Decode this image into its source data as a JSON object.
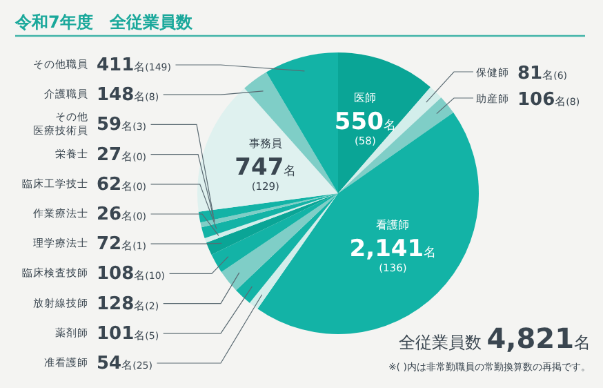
{
  "chart_data": {
    "type": "pie",
    "title": "令和7年度　全従業員数",
    "categories": [
      "医師",
      "保健師",
      "助産師",
      "看護師",
      "准看護師",
      "薬剤師",
      "放射線技師",
      "臨床検査技師",
      "理学療法士",
      "作業療法士",
      "臨床工学技士",
      "栄養士",
      "その他医療技術員",
      "事務員",
      "介護職員",
      "その他職員"
    ],
    "values": [
      550,
      81,
      106,
      2141,
      54,
      101,
      128,
      108,
      72,
      26,
      62,
      27,
      59,
      747,
      148,
      411
    ],
    "value_labels": [
      "550名(58)",
      "81名(6)",
      "106名(8)",
      "2,141名(136)",
      "54名(25)",
      "101名(5)",
      "128名(2)",
      "108名(10)",
      "72名(1)",
      "26名(0)",
      "62名(0)",
      "27名(0)",
      "59名(3)",
      "747名(129)",
      "148名(8)",
      "411名(149)"
    ],
    "colors": [
      "#0aa596",
      "#d3eeeb",
      "#7fcec7",
      "#13b3a6",
      "#d3eeeb",
      "#13b3a6",
      "#7fcec7",
      "#13b3a6",
      "#0aa596",
      "#d3eeeb",
      "#13b3a6",
      "#7fcec7",
      "#13b3a6",
      "#dff1ef",
      "#7fcec7",
      "#13b3a6"
    ],
    "annotations": [
      "全従業員数 4,821名",
      "※( )内は非常勤職員の常勤換算数の再掲です。"
    ],
    "legend": false
  }
}
